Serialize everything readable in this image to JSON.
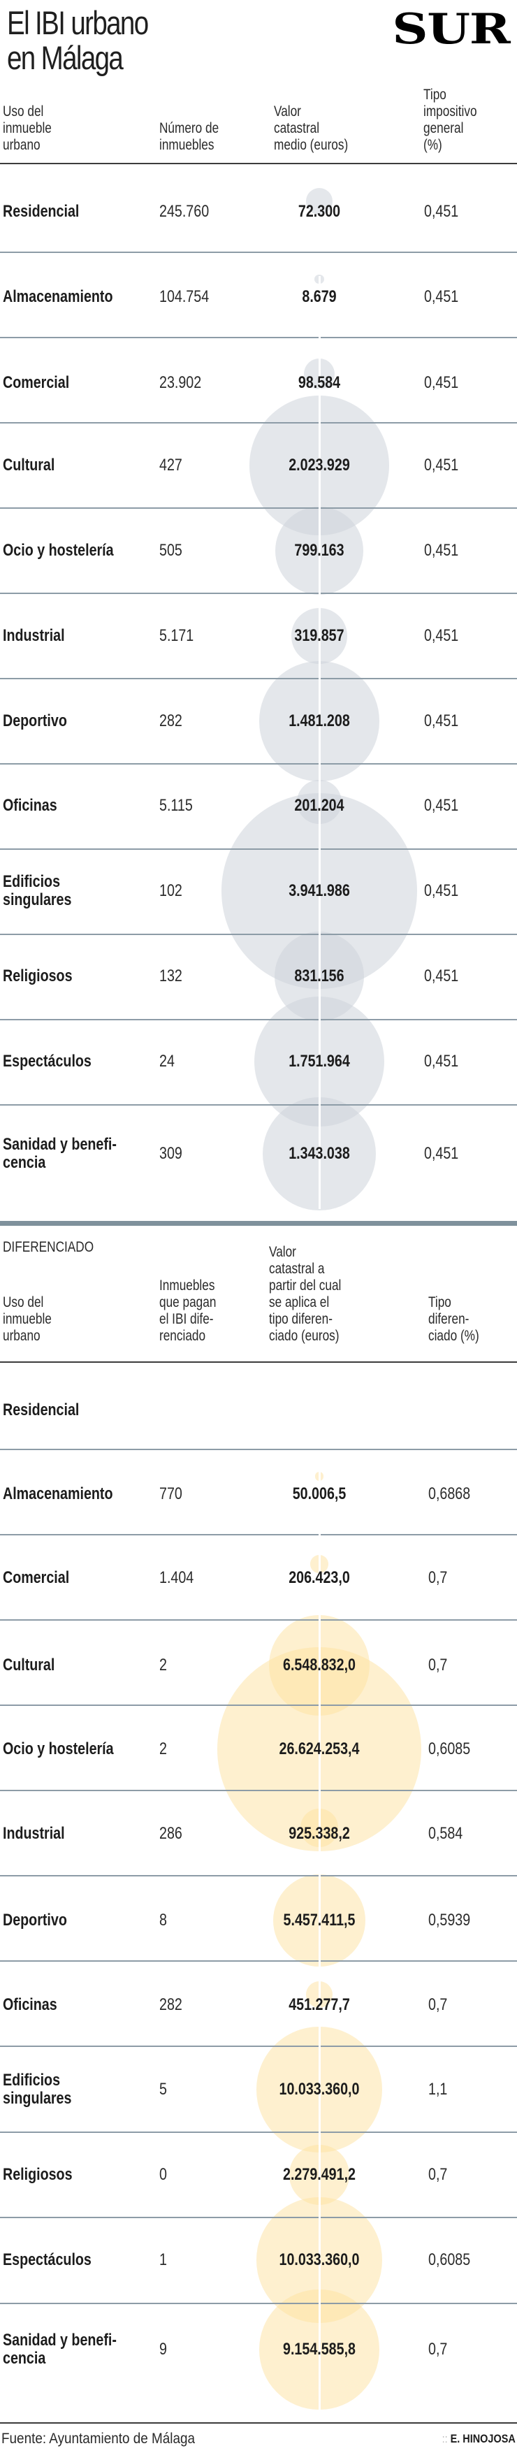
{
  "header": {
    "title_line1": "El IBI urbano",
    "title_line2": "en Málaga",
    "logo": "SUR"
  },
  "section1": {
    "col_use": "Uso del\ninmueble\nurbano",
    "col_count": "Número de\ninmuebles",
    "col_value": "Valor\ncatastral\nmedio (euros)",
    "col_rate": "Tipo\nimpositivo\ngeneral\n(%)"
  },
  "section2": {
    "label": "DIFERENCIADO",
    "col_use": "Uso del\ninmueble\nurbano",
    "col_count": "Inmuebles\nque pagan\nel IBI dife-\nrenciado",
    "col_value": "Valor\ncatastral a\npartir del cual\nse aplica el\ntipo diferen-\nciado (euros)",
    "col_rate": "Tipo\ndiferen-\nciado (%)"
  },
  "chart_data": [
    {
      "type": "table",
      "title": "El IBI urbano en Málaga — tipo general",
      "bubble_color": "#cdd3da",
      "columns": [
        "Uso del inmueble urbano",
        "Número de inmuebles",
        "Valor catastral medio (euros)",
        "Tipo impositivo general (%)"
      ],
      "rows": [
        {
          "use": "Residencial",
          "count": "245.760",
          "value_label": "72.300",
          "value": 72300,
          "rate": "0,451"
        },
        {
          "use": "Almacenamiento",
          "count": "104.754",
          "value_label": "8.679",
          "value": 8679,
          "rate": "0,451"
        },
        {
          "use": "Comercial",
          "count": "23.902",
          "value_label": "98.584",
          "value": 98584,
          "rate": "0,451"
        },
        {
          "use": "Cultural",
          "count": "427",
          "value_label": "2.023.929",
          "value": 2023929,
          "rate": "0,451"
        },
        {
          "use": "Ocio y hostelería",
          "count": "505",
          "value_label": "799.163",
          "value": 799163,
          "rate": "0,451"
        },
        {
          "use": "Industrial",
          "count": "5.171",
          "value_label": "319.857",
          "value": 319857,
          "rate": "0,451"
        },
        {
          "use": "Deportivo",
          "count": "282",
          "value_label": "1.481.208",
          "value": 1481208,
          "rate": "0,451"
        },
        {
          "use": "Oficinas",
          "count": "5.115",
          "value_label": "201.204",
          "value": 201204,
          "rate": "0,451"
        },
        {
          "use": "Edificios\nsingulares",
          "count": "102",
          "value_label": "3.941.986",
          "value": 3941986,
          "rate": "0,451"
        },
        {
          "use": "Religiosos",
          "count": "132",
          "value_label": "831.156",
          "value": 831156,
          "rate": "0,451"
        },
        {
          "use": "Espectáculos",
          "count": "24",
          "value_label": "1.751.964",
          "value": 1751964,
          "rate": "0,451"
        },
        {
          "use": "Sanidad y benefi-\ncencia",
          "count": "309",
          "value_label": "1.343.038",
          "value": 1343038,
          "rate": "0,451"
        }
      ]
    },
    {
      "type": "table",
      "title": "DIFERENCIADO",
      "bubble_color": "#fde2a0",
      "columns": [
        "Uso del inmueble urbano",
        "Inmuebles que pagan el IBI diferenciado",
        "Valor catastral a partir del cual se aplica el tipo diferenciado (euros)",
        "Tipo diferenciado (%)"
      ],
      "rows": [
        {
          "use": "Residencial",
          "count": "",
          "value_label": "",
          "value": 0,
          "rate": ""
        },
        {
          "use": "Almacenamiento",
          "count": "770",
          "value_label": "50.006,5",
          "value": 50006.5,
          "rate": "0,6868"
        },
        {
          "use": "Comercial",
          "count": "1.404",
          "value_label": "206.423,0",
          "value": 206423.0,
          "rate": "0,7"
        },
        {
          "use": "Cultural",
          "count": "2",
          "value_label": "6.548.832,0",
          "value": 6548832.0,
          "rate": "0,7"
        },
        {
          "use": "Ocio y hostelería",
          "count": "2",
          "value_label": "26.624.253,4",
          "value": 26624253.4,
          "rate": "0,6085"
        },
        {
          "use": "Industrial",
          "count": "286",
          "value_label": "925.338,2",
          "value": 925338.2,
          "rate": "0,584"
        },
        {
          "use": "Deportivo",
          "count": "8",
          "value_label": "5.457.411,5",
          "value": 5457411.5,
          "rate": "0,5939"
        },
        {
          "use": "Oficinas",
          "count": "282",
          "value_label": "451.277,7",
          "value": 451277.7,
          "rate": "0,7"
        },
        {
          "use": "Edificios\nsingulares",
          "count": "5",
          "value_label": "10.033.360,0",
          "value": 10033360.0,
          "rate": "1,1"
        },
        {
          "use": "Religiosos",
          "count": "0",
          "value_label": "2.279.491,2",
          "value": 2279491.2,
          "rate": "0,7"
        },
        {
          "use": "Espectáculos",
          "count": "1",
          "value_label": "10.033.360,0",
          "value": 10033360.0,
          "rate": "0,6085"
        },
        {
          "use": "Sanidad y benefi-\ncencia",
          "count": "9",
          "value_label": "9.154.585,8",
          "value": 9154585.8,
          "rate": "0,7"
        }
      ]
    }
  ],
  "footer": {
    "source": "Fuente: Ayuntamiento de Málaga",
    "credit_prefix": "::",
    "credit": "E. HINOJOSA"
  }
}
